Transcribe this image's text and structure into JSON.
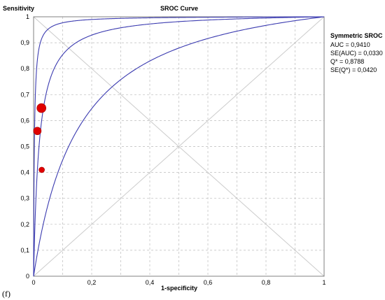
{
  "panel_label": "(f)",
  "chart_data": {
    "type": "line",
    "title": "SROC Curve",
    "ylabel": "Sensitivity",
    "xlabel": "1-specificity",
    "xlim": [
      0,
      1
    ],
    "ylim": [
      0,
      1
    ],
    "grid": true,
    "x_ticks": [
      "0",
      "0,2",
      "0,4",
      "0,6",
      "0,8",
      "1"
    ],
    "y_ticks": [
      "0",
      "0,1",
      "0,2",
      "0,3",
      "0,4",
      "0,5",
      "0,6",
      "0,7",
      "0,8",
      "0,9",
      "1"
    ],
    "legend_position": "right",
    "stats": {
      "heading": "Symmetric SROC",
      "lines": [
        "AUC = 0,9410",
        "SE(AUC) = 0,0330",
        "Q* = 0,8788",
        "SE(Q*) = 0,0420"
      ]
    },
    "curve_dor": {
      "center": 52.6,
      "upper": 380,
      "lower": 7.3
    },
    "points": [
      {
        "x": 0.027,
        "y": 0.648,
        "size": "large"
      },
      {
        "x": 0.013,
        "y": 0.56,
        "size": "medium"
      },
      {
        "x": 0.028,
        "y": 0.41,
        "size": "small"
      }
    ],
    "colors": {
      "curve": "#3b3bb0",
      "point": "#e00000",
      "grid": "#bbbbbb",
      "diagonal": "#cccccc"
    }
  }
}
